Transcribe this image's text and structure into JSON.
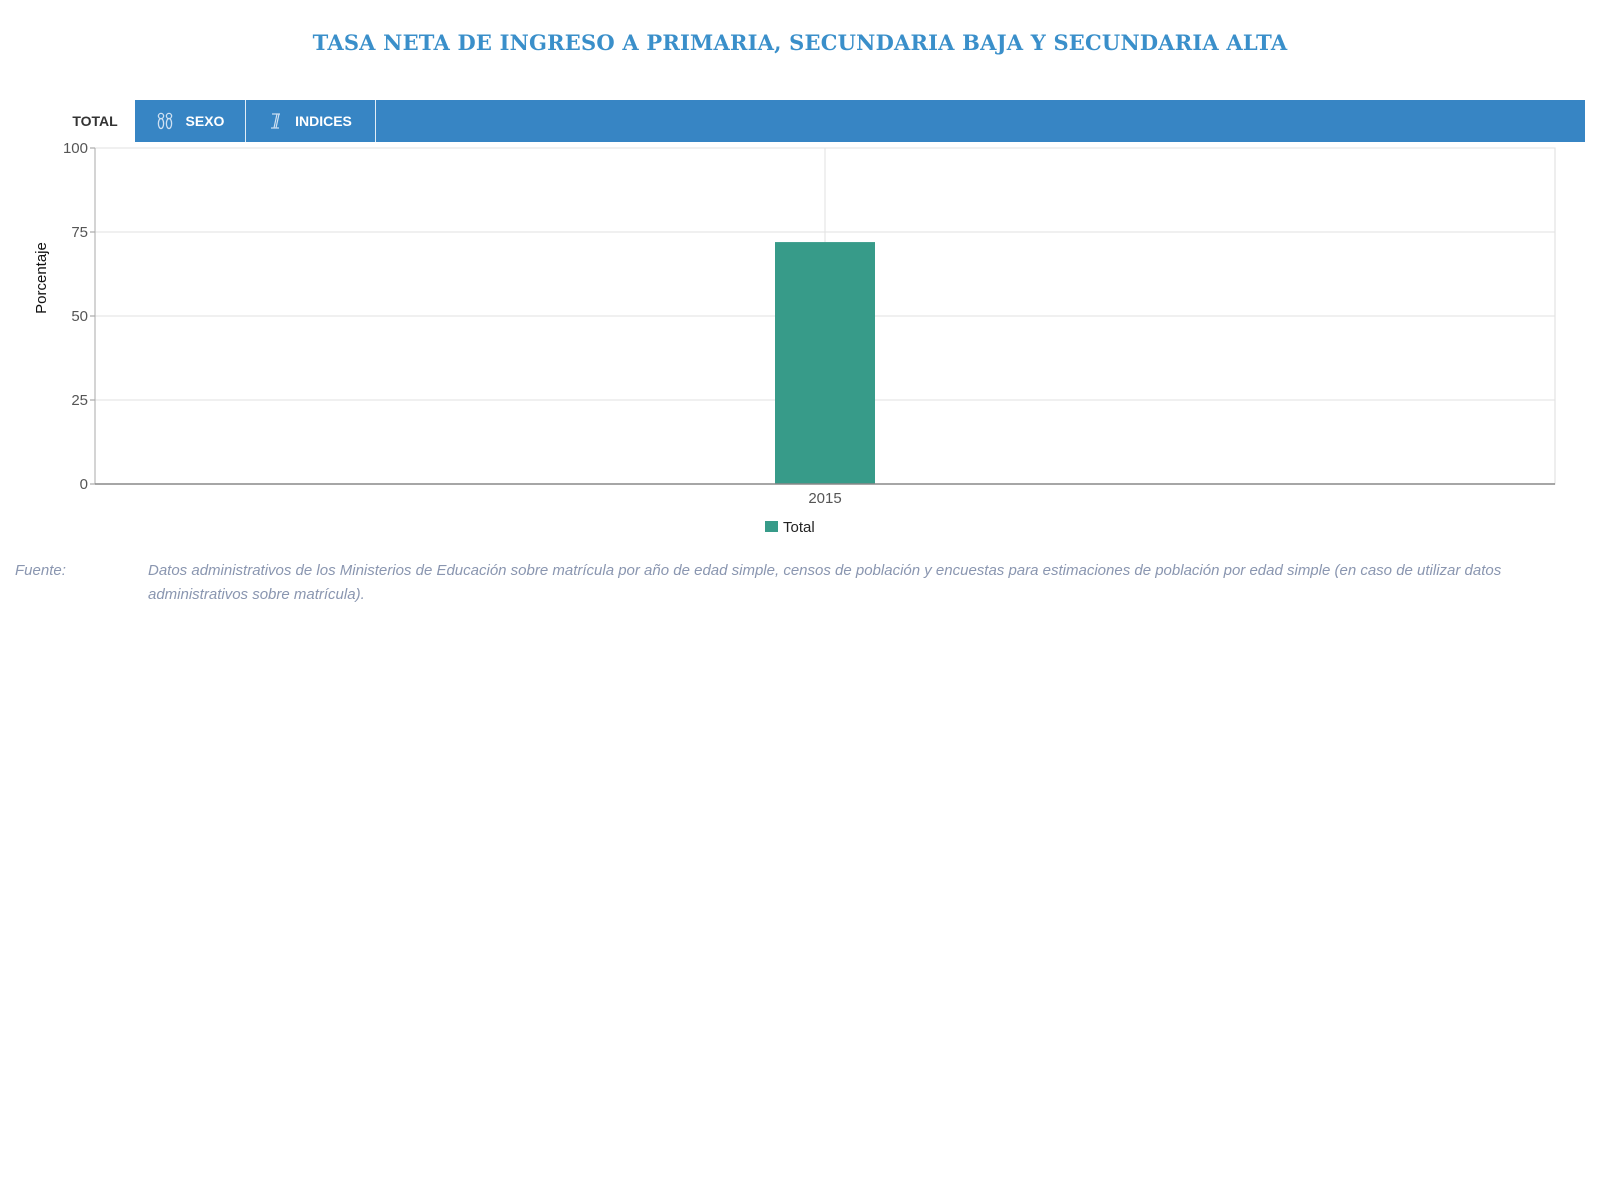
{
  "title": "TASA NETA DE INGRESO A PRIMARIA, SECUNDARIA BAJA Y SECUNDARIA ALTA",
  "tabs": [
    {
      "label": "TOTAL",
      "icon": "",
      "active": true
    },
    {
      "label": "SEXO",
      "icon": "gender-icon",
      "active": false
    },
    {
      "label": "INDICES",
      "icon": "index-icon",
      "active": false
    }
  ],
  "colors": {
    "accent": "#3785c4",
    "title": "#3a8fca",
    "bar": "#379b89",
    "source": "#8a96b0"
  },
  "chart_data": {
    "type": "bar",
    "categories": [
      "2015"
    ],
    "series": [
      {
        "name": "Total",
        "values": [
          72
        ],
        "color": "#379b89"
      }
    ],
    "title": "TASA NETA DE INGRESO A PRIMARIA, SECUNDARIA BAJA Y SECUNDARIA ALTA",
    "xlabel": "",
    "ylabel": "Porcentaje",
    "ylim": [
      0,
      100
    ],
    "yticks": [
      0,
      25,
      50,
      75,
      100
    ],
    "grid": true,
    "legend": "bottom-center"
  },
  "source": {
    "label": "Fuente:",
    "text": "Datos administrativos de los Ministerios de Educación sobre matrícula por año de edad simple, censos de población y encuestas para estimaciones de población por edad simple (en caso de utilizar datos administrativos sobre matrícula)."
  }
}
